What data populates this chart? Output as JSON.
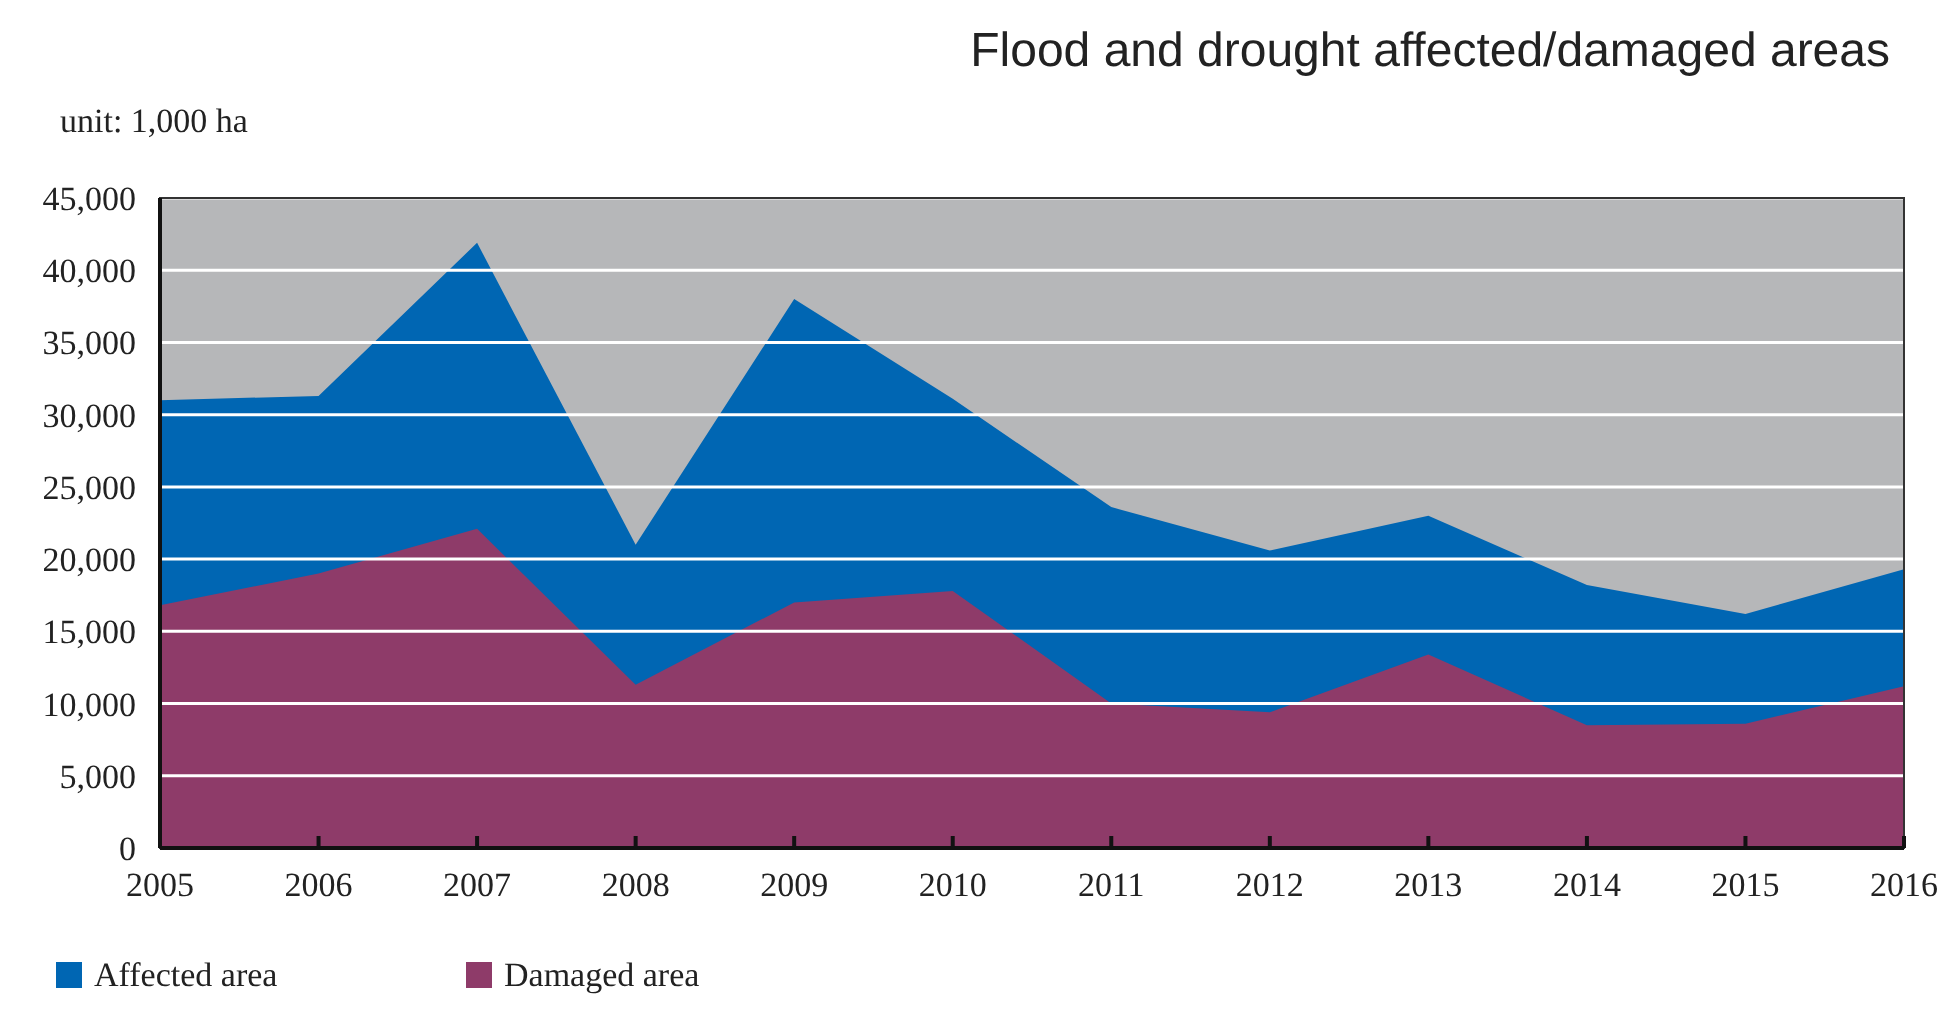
{
  "chart_data": {
    "type": "area",
    "title": "Flood and drought affected/damaged areas",
    "ylabel": "unit: 1,000 ha",
    "x": [
      2005,
      2006,
      2007,
      2008,
      2009,
      2010,
      2011,
      2012,
      2013,
      2014,
      2015,
      2016
    ],
    "series": [
      {
        "name": "Affected  area",
        "color": "#0066b3",
        "values": [
          31000,
          31300,
          41900,
          21000,
          38000,
          31100,
          23600,
          20600,
          23000,
          18200,
          16200,
          19300
        ]
      },
      {
        "name": "Damaged area",
        "color": "#8e3b69",
        "values": [
          16800,
          19000,
          22100,
          11300,
          17000,
          17800,
          10000,
          9400,
          13400,
          8500,
          8600,
          11200
        ]
      }
    ],
    "xlim": [
      2005,
      2016
    ],
    "xticks": [
      2005,
      2006,
      2007,
      2008,
      2009,
      2010,
      2011,
      2012,
      2013,
      2014,
      2015,
      2016
    ],
    "ylim": [
      0,
      45000
    ],
    "yticks": [
      {
        "value": 0,
        "label": "0"
      },
      {
        "value": 5000,
        "label": "5,000"
      },
      {
        "value": 10000,
        "label": "10,000"
      },
      {
        "value": 15000,
        "label": "15,000"
      },
      {
        "value": 20000,
        "label": "20,000"
      },
      {
        "value": 25000,
        "label": "25,000"
      },
      {
        "value": 30000,
        "label": "30,000"
      },
      {
        "value": 35000,
        "label": "35,000"
      },
      {
        "value": 40000,
        "label": "40,000"
      },
      {
        "value": 45000,
        "label": "45,000"
      }
    ],
    "grid": "y",
    "legend": "bottom left"
  }
}
